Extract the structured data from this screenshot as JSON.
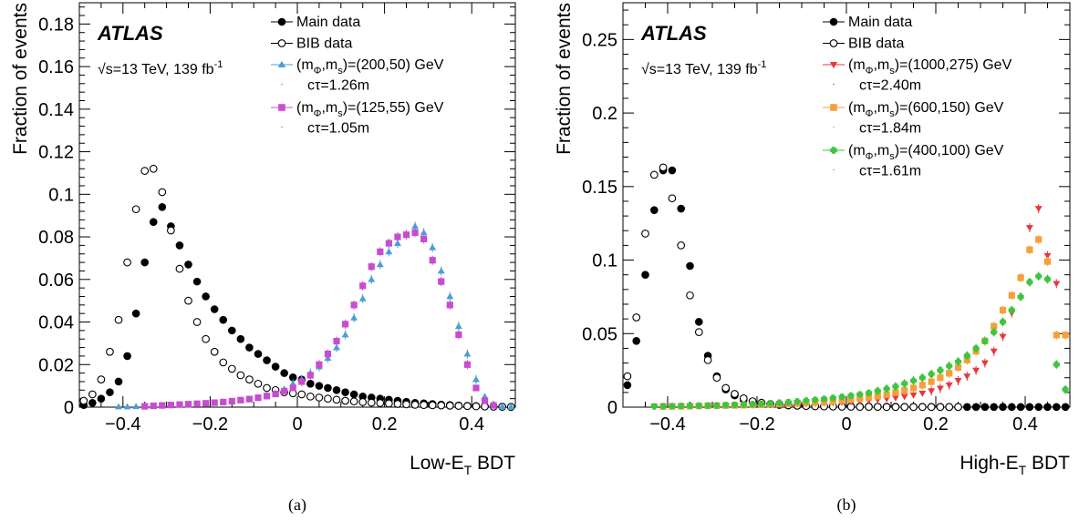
{
  "chart_data": [
    {
      "type": "scatter",
      "panel_label": "(a)",
      "experiment": "ATLAS",
      "energy_label": "√s=13 TeV, 139 fb",
      "energy_superscript": "-1",
      "xlabel": "Low-E",
      "xlabel_sub": "T",
      "xlabel_suffix": " BDT",
      "ylabel": "Fraction of events",
      "xlim": [
        -0.5,
        0.5
      ],
      "ylim": [
        0,
        0.19
      ],
      "xticks": [
        "-0.4",
        "-0.2",
        "0",
        "0.2",
        "0.4"
      ],
      "xtick_values": [
        -0.4,
        -0.2,
        0,
        0.2,
        0.4
      ],
      "yticks": [
        "0",
        "0.02",
        "0.04",
        "0.06",
        "0.08",
        "0.1",
        "0.12",
        "0.14",
        "0.16",
        "0.18"
      ],
      "ytick_values": [
        0,
        0.02,
        0.04,
        0.06,
        0.08,
        0.1,
        0.12,
        0.14,
        0.16,
        0.18
      ],
      "legend_position": "top-right",
      "x": [
        -0.49,
        -0.47,
        -0.45,
        -0.43,
        -0.41,
        -0.39,
        -0.37,
        -0.35,
        -0.33,
        -0.31,
        -0.29,
        -0.27,
        -0.25,
        -0.23,
        -0.21,
        -0.19,
        -0.17,
        -0.15,
        -0.13,
        -0.11,
        -0.09,
        -0.07,
        -0.05,
        -0.03,
        -0.01,
        0.01,
        0.03,
        0.05,
        0.07,
        0.09,
        0.11,
        0.13,
        0.15,
        0.17,
        0.19,
        0.21,
        0.23,
        0.25,
        0.27,
        0.29,
        0.31,
        0.33,
        0.35,
        0.37,
        0.39,
        0.41,
        0.43,
        0.45,
        0.47,
        0.49
      ],
      "series": [
        {
          "name": "Main data",
          "marker": "filled-circle",
          "color": "#000000",
          "values": [
            0.001,
            0.002,
            0.004,
            0.007,
            0.012,
            0.024,
            0.044,
            0.068,
            0.087,
            0.094,
            0.085,
            0.076,
            0.067,
            0.059,
            0.052,
            0.046,
            0.041,
            0.036,
            0.032,
            0.028,
            0.025,
            0.022,
            0.019,
            0.016,
            0.014,
            0.013,
            0.011,
            0.01,
            0.009,
            0.008,
            0.007,
            0.006,
            0.005,
            0.0045,
            0.004,
            0.0035,
            0.003,
            0.0025,
            0.002,
            0.0018,
            0.0015,
            0.0012,
            0.001,
            0.0008,
            0.0006,
            0.0005,
            0.0004,
            0.0003,
            0.0002,
            0.0001
          ]
        },
        {
          "name": "BIB data",
          "marker": "open-circle",
          "color": "#000000",
          "values": [
            0.003,
            0.006,
            0.013,
            0.026,
            0.041,
            0.068,
            0.093,
            0.111,
            0.112,
            0.101,
            0.083,
            0.065,
            0.05,
            0.04,
            0.032,
            0.026,
            0.021,
            0.018,
            0.015,
            0.013,
            0.011,
            0.009,
            0.008,
            0.007,
            0.0065,
            0.006,
            0.005,
            0.0045,
            0.004,
            0.0035,
            0.003,
            0.0027,
            0.0024,
            0.0021,
            0.0019,
            0.0017,
            0.0015,
            0.0013,
            0.0011,
            0.001,
            0.0009,
            0.0008,
            0.0007,
            0.0006,
            0.0005,
            0.0004,
            0.0003,
            0.0002,
            0.0002,
            0.0001
          ]
        },
        {
          "name": "(m_Φ,m_s)=(200,50) GeV",
          "extra": "cτ=1.26m",
          "marker": "triangle-up",
          "color": "#4a9fd4",
          "values": [
            null,
            null,
            null,
            null,
            0.0002,
            0.0002,
            0.0003,
            0.0004,
            0.0005,
            0.0006,
            0.0008,
            0.001,
            0.0012,
            0.0015,
            0.0018,
            0.002,
            0.0024,
            0.0028,
            0.0033,
            0.0038,
            0.0045,
            0.0055,
            0.0065,
            0.0085,
            0.011,
            0.013,
            0.016,
            0.019,
            0.023,
            0.028,
            0.034,
            0.042,
            0.051,
            0.06,
            0.067,
            0.073,
            0.077,
            0.081,
            0.085,
            0.082,
            0.075,
            0.064,
            0.052,
            0.038,
            0.025,
            0.013,
            0.005,
            0.0015,
            0.0004,
            0.0001
          ]
        },
        {
          "name": "(m_Φ,m_s)=(125,55) GeV",
          "extra": "cτ=1.05m",
          "marker": "filled-square",
          "color": "#c84ccf",
          "values": [
            null,
            null,
            null,
            null,
            null,
            null,
            null,
            0.0004,
            0.0006,
            0.0008,
            0.001,
            0.0012,
            0.0014,
            0.0016,
            0.0018,
            0.0021,
            0.0024,
            0.0028,
            0.0033,
            0.0038,
            0.0044,
            0.0052,
            0.0062,
            0.0075,
            0.009,
            0.012,
            0.015,
            0.02,
            0.025,
            0.031,
            0.039,
            0.048,
            0.057,
            0.066,
            0.073,
            0.077,
            0.08,
            0.081,
            0.082,
            0.079,
            0.069,
            0.059,
            0.048,
            0.034,
            0.02,
            0.009,
            0.003,
            0.0008,
            null,
            null
          ]
        }
      ]
    },
    {
      "type": "scatter",
      "panel_label": "(b)",
      "experiment": "ATLAS",
      "energy_label": "√s=13 TeV, 139 fb",
      "energy_superscript": "-1",
      "xlabel": "High-E",
      "xlabel_sub": "T",
      "xlabel_suffix": " BDT",
      "ylabel": "Fraction of events",
      "xlim": [
        -0.5,
        0.5
      ],
      "ylim": [
        0,
        0.275
      ],
      "xticks": [
        "-0.4",
        "-0.2",
        "0",
        "0.2",
        "0.4"
      ],
      "xtick_values": [
        -0.4,
        -0.2,
        0,
        0.2,
        0.4
      ],
      "yticks": [
        "0",
        "0.05",
        "0.1",
        "0.15",
        "0.2",
        "0.25"
      ],
      "ytick_values": [
        0,
        0.05,
        0.1,
        0.15,
        0.2,
        0.25
      ],
      "legend_position": "top-right",
      "x": [
        -0.49,
        -0.47,
        -0.45,
        -0.43,
        -0.41,
        -0.39,
        -0.37,
        -0.35,
        -0.33,
        -0.31,
        -0.29,
        -0.27,
        -0.25,
        -0.23,
        -0.21,
        -0.19,
        -0.17,
        -0.15,
        -0.13,
        -0.11,
        -0.09,
        -0.07,
        -0.05,
        -0.03,
        -0.01,
        0.01,
        0.03,
        0.05,
        0.07,
        0.09,
        0.11,
        0.13,
        0.15,
        0.17,
        0.19,
        0.21,
        0.23,
        0.25,
        0.27,
        0.29,
        0.31,
        0.33,
        0.35,
        0.37,
        0.39,
        0.41,
        0.43,
        0.45,
        0.47,
        0.49
      ],
      "series": [
        {
          "name": "Main data",
          "marker": "filled-circle",
          "color": "#000000",
          "values": [
            0.015,
            0.045,
            0.09,
            0.134,
            0.161,
            0.161,
            0.135,
            0.096,
            0.058,
            0.035,
            0.021,
            0.012,
            0.008,
            0.005,
            0.0035,
            0.0025,
            0.002,
            0.0015,
            0.0012,
            0.001,
            0.0009,
            0.0008,
            0.0007,
            0.0006,
            0.0005,
            0.0005,
            0.0004,
            0.0004,
            0.0003,
            0.0003,
            0.0003,
            0.0002,
            0.0002,
            0.0002,
            0.0002,
            0.0002,
            0.0001,
            0.0001,
            0.0001,
            0.0001,
            0.0001,
            0.0001,
            0.0001,
            0.0001,
            0.0001,
            0.0001,
            0.0001,
            0.0001,
            0.0001,
            0.0001
          ]
        },
        {
          "name": "BIB data",
          "marker": "open-circle",
          "color": "#000000",
          "values": [
            0.021,
            0.061,
            0.118,
            0.158,
            0.163,
            0.142,
            0.11,
            0.076,
            0.051,
            0.032,
            0.02,
            0.013,
            0.009,
            0.006,
            0.004,
            0.003,
            0.0022,
            0.0017,
            0.0013,
            0.001,
            0.0008,
            0.0006,
            0.0005,
            0.0004,
            0.0003,
            0.0003,
            0.0002,
            0.0002,
            0.0002,
            0.0001,
            0.0001,
            0.0001,
            0.0001,
            0.0001,
            0.0001,
            0.0001,
            0.0001,
            0.0001,
            null,
            null,
            null,
            null,
            null,
            null,
            null,
            null,
            null,
            null,
            null,
            null
          ]
        },
        {
          "name": "(m_Φ,m_s)=(1000,275) GeV",
          "extra": "cτ=2.40m",
          "marker": "triangle-down",
          "color": "#e8373a",
          "values": [
            null,
            null,
            null,
            0.0005,
            0.0005,
            0.0006,
            0.0006,
            0.0007,
            0.0008,
            0.0009,
            0.001,
            0.0011,
            0.0012,
            0.0013,
            0.0014,
            0.0015,
            0.0016,
            0.0018,
            0.002,
            0.0022,
            0.0024,
            0.0026,
            0.0028,
            0.003,
            0.0033,
            0.0036,
            0.004,
            0.0045,
            0.005,
            0.0056,
            0.0063,
            0.0072,
            0.0082,
            0.0094,
            0.011,
            0.0128,
            0.015,
            0.018,
            0.021,
            0.025,
            0.03,
            0.038,
            0.048,
            0.064,
            0.088,
            0.122,
            0.135,
            0.103,
            0.084,
            null
          ]
        },
        {
          "name": "(m_Φ,m_s)=(600,150) GeV",
          "extra": "cτ=1.84m",
          "marker": "filled-square",
          "color": "#f5a03a",
          "values": [
            null,
            null,
            null,
            null,
            0.0005,
            0.0005,
            0.0006,
            0.0007,
            0.0008,
            0.0009,
            0.001,
            0.0011,
            0.0012,
            0.0013,
            0.0015,
            0.0016,
            0.0018,
            0.002,
            0.0022,
            0.0025,
            0.0028,
            0.0031,
            0.0035,
            0.0039,
            0.0044,
            0.005,
            0.0057,
            0.0065,
            0.0074,
            0.0085,
            0.0098,
            0.0113,
            0.013,
            0.015,
            0.0173,
            0.02,
            0.023,
            0.027,
            0.032,
            0.038,
            0.045,
            0.055,
            0.066,
            0.076,
            0.088,
            0.107,
            0.114,
            0.099,
            0.049,
            0.049
          ]
        },
        {
          "name": "(m_Φ,m_s)=(400,100) GeV",
          "extra": "cτ=1.61m",
          "marker": "cross",
          "color": "#3ec43e",
          "values": [
            null,
            null,
            null,
            0.0005,
            0.0006,
            0.0007,
            0.0008,
            0.0009,
            0.001,
            0.0011,
            0.0012,
            0.0014,
            0.0016,
            0.0018,
            0.002,
            0.0023,
            0.0026,
            0.003,
            0.0034,
            0.0039,
            0.0044,
            0.005,
            0.0056,
            0.0063,
            0.007,
            0.0078,
            0.0087,
            0.0097,
            0.011,
            0.0125,
            0.014,
            0.016,
            0.018,
            0.02,
            0.0225,
            0.025,
            0.028,
            0.031,
            0.035,
            0.04,
            0.045,
            0.051,
            0.058,
            0.066,
            0.075,
            0.085,
            0.089,
            0.087,
            0.029,
            0.012
          ]
        }
      ]
    }
  ]
}
